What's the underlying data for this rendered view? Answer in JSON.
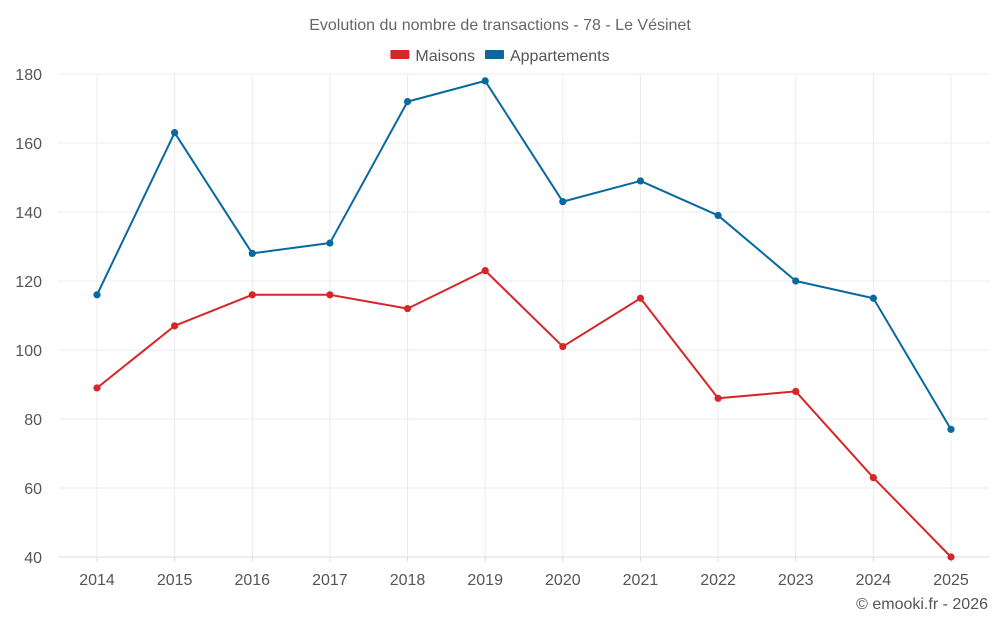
{
  "chart_data": {
    "type": "line",
    "title": "Evolution du nombre de transactions - 78 - Le Vésinet",
    "xlabel": "",
    "ylabel": "",
    "categories": [
      "2014",
      "2015",
      "2016",
      "2017",
      "2018",
      "2019",
      "2020",
      "2021",
      "2022",
      "2023",
      "2024",
      "2025"
    ],
    "series": [
      {
        "name": "Maisons",
        "color": "#d62728",
        "values": [
          89,
          107,
          116,
          116,
          112,
          123,
          101,
          115,
          86,
          88,
          63,
          40
        ]
      },
      {
        "name": "Appartements",
        "color": "#0868a0",
        "values": [
          116,
          163,
          128,
          131,
          172,
          178,
          143,
          149,
          139,
          120,
          115,
          77
        ]
      }
    ],
    "ylim": [
      40,
      180
    ],
    "yticks": [
      40,
      60,
      80,
      100,
      120,
      140,
      160,
      180
    ],
    "grid": true,
    "legend_position": "top-center"
  },
  "footer": {
    "copyright": "© emooki.fr - 2026"
  }
}
